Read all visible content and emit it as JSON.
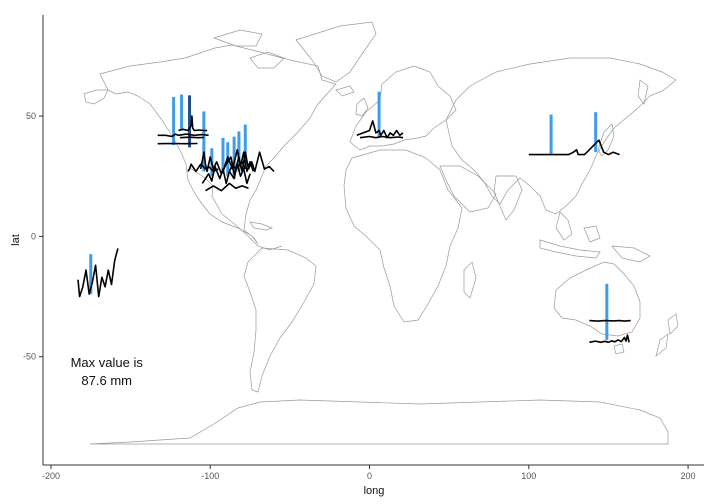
{
  "chart_data": {
    "type": "map",
    "title": "",
    "xlabel": "long",
    "ylabel": "lat",
    "xlim": [
      -205,
      210
    ],
    "ylim": [
      -95,
      92
    ],
    "x_ticks": [
      -200,
      -100,
      0,
      100,
      200
    ],
    "y_ticks": [
      -50,
      0,
      50
    ],
    "x_tick_labels": [
      "-200",
      "-100",
      "0",
      "100",
      "200"
    ],
    "y_tick_labels": [
      "-50",
      "0",
      "50"
    ],
    "grid": false,
    "colors": {
      "bar": "#3f9ce8",
      "bar_dark": "#1f4f8a",
      "line": "#000000",
      "coast": "#9a9a9a"
    },
    "annotation": {
      "line1": "Max value is",
      "line2": "87.6 mm",
      "long": -165,
      "lat": -56
    },
    "bars": [
      {
        "long": -123,
        "lat": 38,
        "height": 24
      },
      {
        "long": -118,
        "lat": 44,
        "height": 18
      },
      {
        "long": -113,
        "lat": 37,
        "height": 26,
        "dark": true
      },
      {
        "long": -104,
        "lat": 27,
        "height": 30
      },
      {
        "long": -99,
        "lat": 25,
        "height": 14
      },
      {
        "long": -92,
        "lat": 26,
        "height": 18
      },
      {
        "long": -89,
        "lat": 25,
        "height": 17
      },
      {
        "long": -85,
        "lat": 24,
        "height": 21
      },
      {
        "long": -82,
        "lat": 27,
        "height": 20
      },
      {
        "long": -78,
        "lat": 29,
        "height": 21
      },
      {
        "long": 6,
        "lat": 41,
        "height": 23
      },
      {
        "long": 114,
        "lat": 34,
        "height": 20
      },
      {
        "long": 142,
        "lat": 35,
        "height": 20
      },
      {
        "long": -175,
        "lat": -24,
        "height": 20
      },
      {
        "long": 149,
        "lat": -43,
        "height": 28
      }
    ],
    "sparklines": [
      {
        "long": [
          -133,
          -128,
          -124,
          -122,
          -120,
          -115,
          -110,
          -105,
          -101
        ],
        "lat": [
          42,
          42,
          41.5,
          42.5,
          42,
          42.5,
          42,
          42.3,
          42
        ]
      },
      {
        "long": [
          -133,
          -125,
          -116,
          -108
        ],
        "lat": [
          38.5,
          38.6,
          38.5,
          38.6
        ]
      },
      {
        "long": [
          -120,
          -117,
          -114,
          -112,
          -111.5,
          -111,
          -110,
          -107,
          -104,
          -102
        ],
        "lat": [
          44,
          44.5,
          44,
          46,
          50,
          45,
          44,
          44.2,
          44,
          44
        ]
      },
      {
        "long": [
          -119,
          -113,
          -108,
          -104
        ],
        "lat": [
          41,
          41.2,
          41,
          41.1
        ]
      },
      {
        "long": [
          -114,
          -113,
          -112,
          -110,
          -109,
          -106,
          -103,
          -101,
          -98,
          -95
        ],
        "lat": [
          27,
          28,
          30,
          28,
          27,
          30,
          28,
          29,
          27,
          28
        ]
      },
      {
        "long": [
          -106,
          -104,
          -103,
          -102,
          -100,
          -98,
          -96,
          -93,
          -90,
          -87,
          -85,
          -83,
          -80,
          -78
        ],
        "lat": [
          28,
          35,
          30,
          27,
          33,
          28,
          31,
          26,
          30,
          33,
          26,
          29,
          31,
          28
        ]
      },
      {
        "long": [
          -105,
          -101,
          -99,
          -97,
          -94,
          -92,
          -90,
          -88,
          -85,
          -83,
          -81,
          -79,
          -77,
          -75
        ],
        "lat": [
          22,
          26,
          23,
          29,
          24,
          28,
          22,
          27,
          24,
          30,
          25,
          28,
          22,
          26
        ]
      },
      {
        "long": [
          -92,
          -89,
          -86,
          -83,
          -81,
          -79,
          -77,
          -75,
          -73
        ],
        "lat": [
          27,
          33,
          28,
          36,
          29,
          35,
          27,
          31,
          27
        ]
      },
      {
        "long": [
          -103,
          -98,
          -93,
          -88,
          -84,
          -80,
          -76
        ],
        "lat": [
          19,
          21,
          19,
          22,
          20,
          21,
          20
        ]
      },
      {
        "long": [
          -88,
          -86,
          -84,
          -82,
          -80,
          -78,
          -76,
          -74,
          -72,
          -69,
          -66,
          -63,
          -60
        ],
        "lat": [
          27,
          30,
          28,
          33,
          27,
          35,
          28,
          31,
          27,
          35,
          28,
          29,
          27
        ]
      },
      {
        "long": [
          -8,
          -4,
          0,
          2,
          4,
          6,
          7,
          9,
          11,
          13,
          15,
          17,
          19,
          21
        ],
        "lat": [
          42,
          43,
          44,
          48,
          43,
          44,
          42,
          44,
          41,
          43,
          42,
          44,
          42,
          43
        ]
      },
      {
        "long": [
          -6,
          0,
          4,
          8,
          13,
          18,
          21
        ],
        "lat": [
          41,
          41.5,
          41,
          41.5,
          41,
          41.3,
          41
        ]
      },
      {
        "long": [
          100,
          108,
          115,
          120,
          125,
          128,
          130,
          131,
          133,
          135,
          138,
          141,
          144,
          147,
          150,
          153,
          157
        ],
        "lat": [
          34,
          34,
          34,
          34,
          34,
          35,
          36,
          34,
          34,
          34,
          36,
          38,
          40,
          35,
          34,
          35,
          34
        ]
      },
      {
        "long": [
          -183,
          -182,
          -180,
          -178,
          -176,
          -174,
          -172,
          -170,
          -168,
          -166,
          -164,
          -162,
          -160,
          -158
        ],
        "lat": [
          -18,
          -25,
          -21,
          -14,
          -24,
          -19,
          -12,
          -25,
          -17,
          -21,
          -14,
          -20,
          -10,
          -5
        ]
      },
      {
        "long": [
          138,
          143,
          148,
          153,
          157,
          160,
          164
        ],
        "lat": [
          -35,
          -35.2,
          -35,
          -35.1,
          -35,
          -35.2,
          -35
        ]
      },
      {
        "long": [
          138,
          142,
          145,
          148,
          150,
          152,
          154,
          156,
          158,
          160,
          161,
          162,
          163
        ],
        "lat": [
          -44,
          -43.5,
          -44,
          -43.6,
          -44,
          -43.4,
          -43.8,
          -43,
          -43.7,
          -42,
          -43.5,
          -41,
          -44
        ]
      }
    ]
  }
}
